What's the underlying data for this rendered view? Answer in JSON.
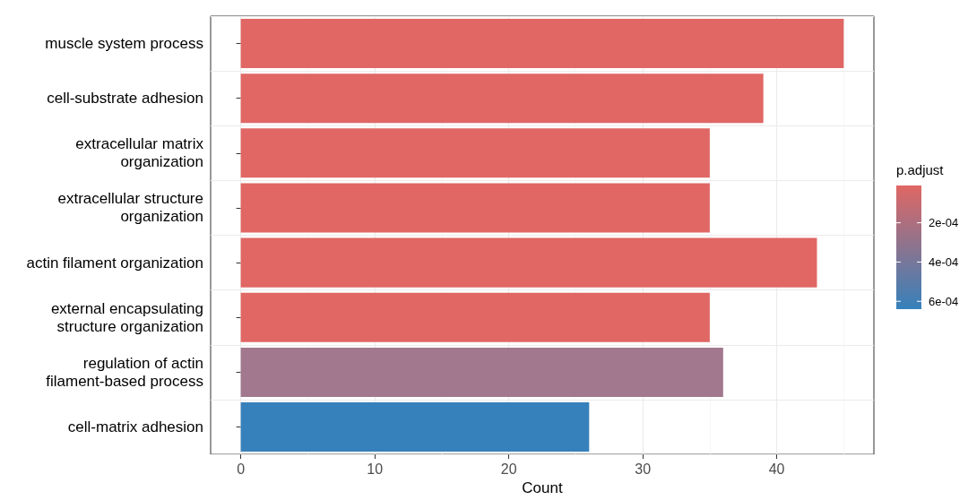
{
  "chart_data": {
    "type": "bar",
    "orientation": "horizontal",
    "xlabel": "Count",
    "categories": [
      "muscle system process",
      "cell-substrate adhesion",
      "extracellular matrix\norganization",
      "extracellular structure\norganization",
      "actin filament organization",
      "external encapsulating\nstructure organization",
      "regulation of actin\nfilament-based process",
      "cell-matrix adhesion"
    ],
    "values": [
      45,
      39,
      35,
      35,
      43,
      35,
      36,
      26
    ],
    "colors": [
      "#e06764",
      "#e06764",
      "#e06764",
      "#e06764",
      "#e06764",
      "#e06764",
      "#a1788d",
      "#3681bb"
    ],
    "xlim": [
      -2.25,
      47.25
    ],
    "xticks": [
      0,
      10,
      20,
      30,
      40
    ],
    "grid": true,
    "clabel": "p.adjust",
    "clim": [
      1e-05,
      0.00064
    ],
    "cticks": [
      {
        "value": 0.0002,
        "label": "2e-04"
      },
      {
        "value": 0.0004,
        "label": "4e-04"
      },
      {
        "value": 0.0006,
        "label": "6e-04"
      }
    ]
  }
}
